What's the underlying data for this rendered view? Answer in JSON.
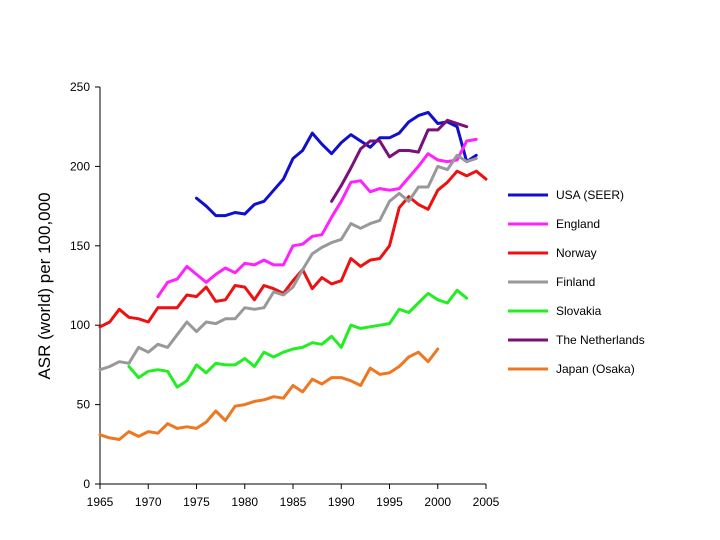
{
  "chart_data": {
    "type": "line",
    "title": "",
    "xlabel": "",
    "ylabel": "ASR (world) per 100,000",
    "xlim": [
      1965,
      2005
    ],
    "ylim": [
      0,
      250
    ],
    "x_ticks": [
      "1965",
      "1970",
      "1975",
      "1980",
      "1985",
      "1990",
      "1995",
      "2000",
      "2005"
    ],
    "y_ticks": [
      "0",
      "50",
      "100",
      "150",
      "200",
      "250"
    ],
    "grid": false,
    "legend_position": "right",
    "series": [
      {
        "name": "USA (SEER)",
        "color": "#1010cc",
        "x": [
          1975,
          1976,
          1977,
          1978,
          1979,
          1980,
          1981,
          1982,
          1983,
          1984,
          1985,
          1986,
          1987,
          1988,
          1989,
          1990,
          1991,
          1992,
          1993,
          1994,
          1995,
          1996,
          1997,
          1998,
          1999,
          2000,
          2001,
          2002,
          2003,
          2004
        ],
        "values": [
          180,
          175,
          169,
          169,
          171,
          170,
          176,
          178,
          185,
          192,
          205,
          210,
          221,
          214,
          208,
          215,
          220,
          216,
          212,
          218,
          218,
          221,
          228,
          232,
          234,
          227,
          228,
          225,
          203,
          207
        ]
      },
      {
        "name": "England",
        "color": "#ff22ff",
        "x": [
          1971,
          1972,
          1973,
          1974,
          1975,
          1976,
          1977,
          1978,
          1979,
          1980,
          1981,
          1982,
          1983,
          1984,
          1985,
          1986,
          1987,
          1988,
          1989,
          1990,
          1991,
          1992,
          1993,
          1994,
          1995,
          1996,
          1997,
          1998,
          1999,
          2000,
          2001,
          2002,
          2003,
          2004
        ],
        "values": [
          118,
          127,
          129,
          137,
          132,
          127,
          132,
          136,
          133,
          139,
          138,
          141,
          138,
          138,
          150,
          151,
          156,
          157,
          168,
          178,
          190,
          191,
          184,
          186,
          185,
          186,
          193,
          200,
          208,
          204,
          203,
          204,
          216,
          217
        ]
      },
      {
        "name": "Norway",
        "color": "#ee1111",
        "x": [
          1965,
          1966,
          1967,
          1968,
          1969,
          1970,
          1971,
          1972,
          1973,
          1974,
          1975,
          1976,
          1977,
          1978,
          1979,
          1980,
          1981,
          1982,
          1983,
          1984,
          1985,
          1986,
          1987,
          1988,
          1989,
          1990,
          1991,
          1992,
          1993,
          1994,
          1995,
          1996,
          1997,
          1998,
          1999,
          2000,
          2001,
          2002,
          2003,
          2004,
          2005
        ],
        "values": [
          99,
          102,
          110,
          105,
          104,
          102,
          111,
          111,
          111,
          119,
          118,
          124,
          115,
          116,
          125,
          124,
          116,
          125,
          123,
          120,
          128,
          135,
          123,
          130,
          126,
          128,
          142,
          137,
          141,
          142,
          150,
          174,
          181,
          176,
          173,
          185,
          190,
          197,
          194,
          197,
          192
        ]
      },
      {
        "name": "Finland",
        "color": "#999999",
        "x": [
          1965,
          1966,
          1967,
          1968,
          1969,
          1970,
          1971,
          1972,
          1973,
          1974,
          1975,
          1976,
          1977,
          1978,
          1979,
          1980,
          1981,
          1982,
          1983,
          1984,
          1985,
          1986,
          1987,
          1988,
          1989,
          1990,
          1991,
          1992,
          1993,
          1994,
          1995,
          1996,
          1997,
          1998,
          1999,
          2000,
          2001,
          2002,
          2003,
          2004
        ],
        "values": [
          72,
          74,
          77,
          76,
          86,
          83,
          88,
          86,
          94,
          102,
          96,
          102,
          101,
          104,
          104,
          111,
          110,
          111,
          121,
          119,
          124,
          135,
          145,
          149,
          152,
          154,
          164,
          161,
          164,
          166,
          178,
          183,
          178,
          187,
          187,
          200,
          198,
          207,
          203,
          205
        ]
      },
      {
        "name": "Slovakia",
        "color": "#22ee22",
        "x": [
          1968,
          1969,
          1970,
          1971,
          1972,
          1973,
          1974,
          1975,
          1976,
          1977,
          1978,
          1979,
          1980,
          1981,
          1982,
          1983,
          1984,
          1985,
          1986,
          1987,
          1988,
          1989,
          1990,
          1991,
          1992,
          1993,
          1994,
          1995,
          1996,
          1997,
          1998,
          1999,
          2000,
          2001,
          2002,
          2003
        ],
        "values": [
          74,
          67,
          71,
          72,
          71,
          61,
          65,
          75,
          70,
          76,
          75,
          75,
          79,
          74,
          83,
          80,
          83,
          85,
          86,
          89,
          88,
          93,
          86,
          100,
          98,
          99,
          100,
          101,
          110,
          108,
          114,
          120,
          116,
          114,
          122,
          117
        ]
      },
      {
        "name": "The Netherlands",
        "color": "#7a117a",
        "x": [
          1989,
          1990,
          1991,
          1992,
          1993,
          1994,
          1995,
          1996,
          1997,
          1998,
          1999,
          2000,
          2001,
          2002,
          2003
        ],
        "values": [
          178,
          188,
          199,
          211,
          216,
          216,
          206,
          210,
          210,
          209,
          223,
          223,
          229,
          227,
          225
        ]
      },
      {
        "name": "Japan (Osaka)",
        "color": "#ee7722",
        "x": [
          1965,
          1966,
          1967,
          1968,
          1969,
          1970,
          1971,
          1972,
          1973,
          1974,
          1975,
          1976,
          1977,
          1978,
          1979,
          1980,
          1981,
          1982,
          1983,
          1984,
          1985,
          1986,
          1987,
          1988,
          1989,
          1990,
          1991,
          1992,
          1993,
          1994,
          1995,
          1996,
          1997,
          1998,
          1999,
          2000
        ],
        "values": [
          31,
          29,
          28,
          33,
          30,
          33,
          32,
          38,
          35,
          36,
          35,
          39,
          46,
          40,
          49,
          50,
          52,
          53,
          55,
          54,
          62,
          58,
          66,
          63,
          67,
          67,
          65,
          62,
          73,
          69,
          70,
          74,
          80,
          83,
          77,
          85
        ]
      }
    ]
  }
}
